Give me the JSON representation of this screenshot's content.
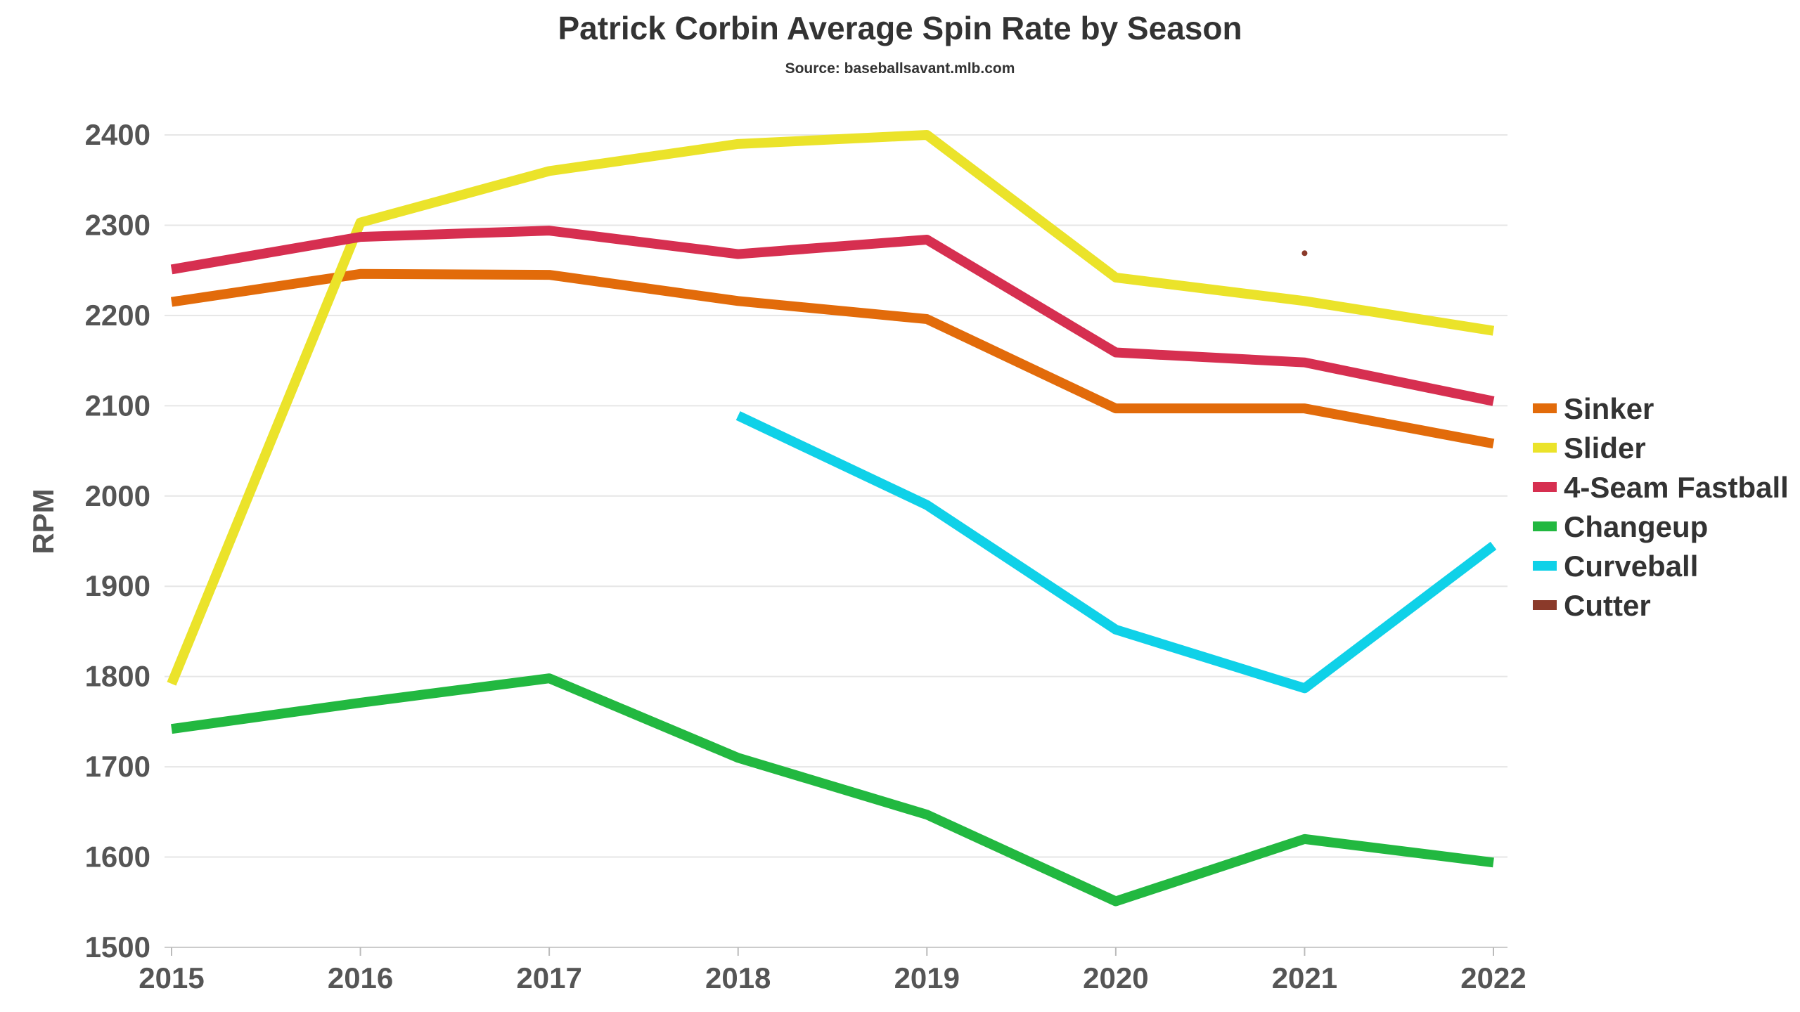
{
  "chart_data": {
    "type": "line",
    "title": "Patrick Corbin Average Spin Rate by Season",
    "subtitle": "Source: baseballsavant.mlb.com",
    "xlabel": "",
    "ylabel": "RPM",
    "x": [
      2015,
      2016,
      2017,
      2018,
      2019,
      2020,
      2021,
      2022
    ],
    "ylim": [
      1500,
      2400
    ],
    "yticks": [
      1500,
      1600,
      1700,
      1800,
      1900,
      2000,
      2100,
      2200,
      2300,
      2400
    ],
    "grid": true,
    "legend_position": "right",
    "series": [
      {
        "name": "Sinker",
        "color": "#e26b0a",
        "values": [
          2215,
          2246,
          2245,
          2216,
          2196,
          2097,
          2097,
          2058
        ]
      },
      {
        "name": "Slider",
        "color": "#ebe32a",
        "values": [
          1792,
          2303,
          2360,
          2390,
          2400,
          2242,
          2216,
          2183
        ]
      },
      {
        "name": "4-Seam Fastball",
        "color": "#d62f50",
        "values": [
          2251,
          2287,
          2294,
          2268,
          2284,
          2159,
          2148,
          2105
        ]
      },
      {
        "name": "Changeup",
        "color": "#22b840",
        "values": [
          1742,
          1771,
          1798,
          1710,
          1647,
          1551,
          1620,
          1594
        ]
      },
      {
        "name": "Curveball",
        "color": "#0fd1e8",
        "values": [
          null,
          null,
          null,
          2089,
          1990,
          1852,
          1787,
          1945
        ]
      },
      {
        "name": "Cutter",
        "color": "#8b3a2a",
        "values": [
          null,
          null,
          null,
          null,
          null,
          null,
          2269,
          null
        ]
      }
    ]
  }
}
